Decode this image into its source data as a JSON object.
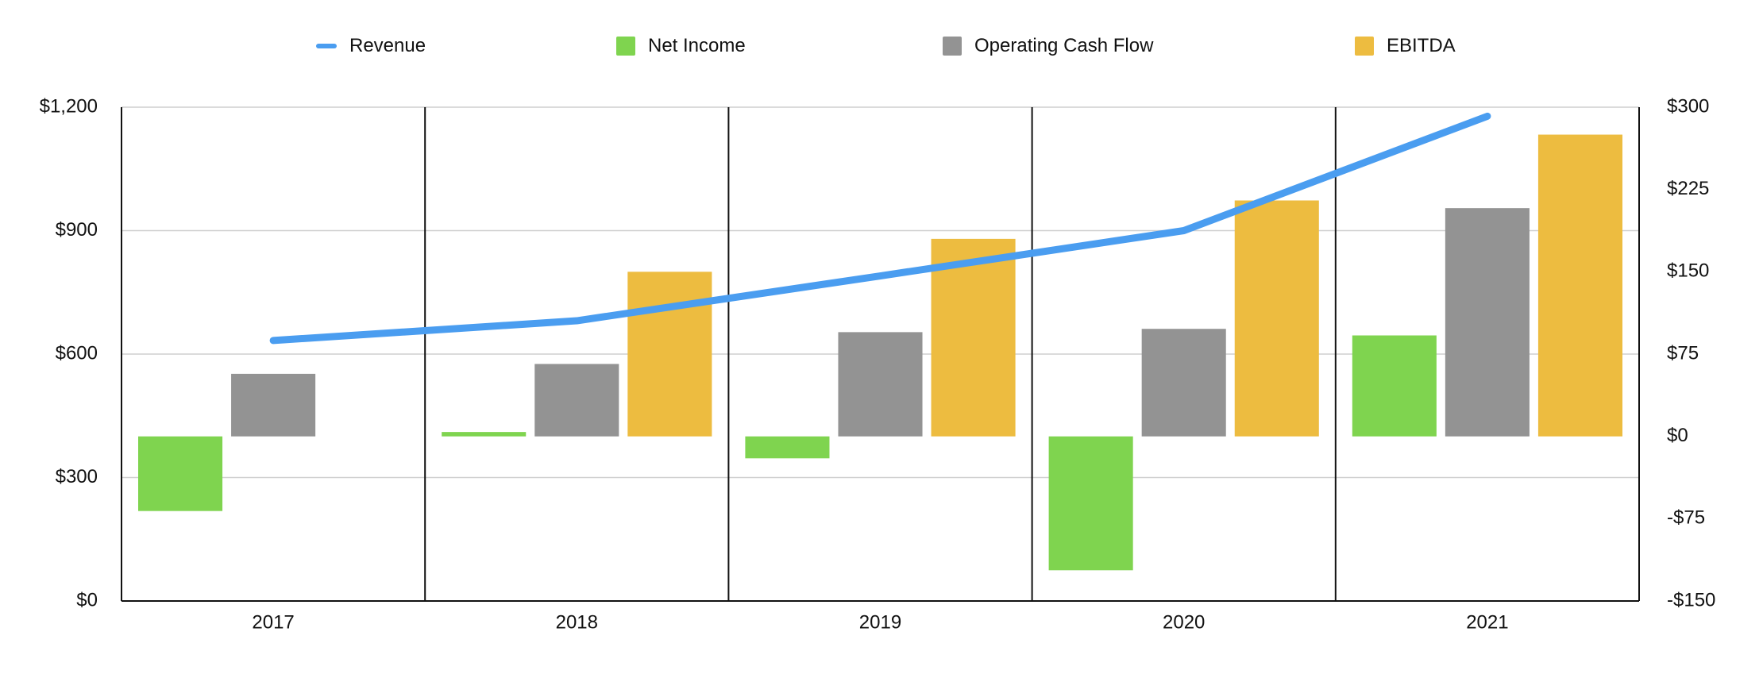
{
  "chart_data": {
    "type": "bar",
    "categories": [
      "2017",
      "2018",
      "2019",
      "2020",
      "2021"
    ],
    "legend_position": "top",
    "grid": true,
    "series": [
      {
        "name": "Revenue",
        "kind": "line",
        "axis": "left",
        "color": "#4a9df0",
        "values": [
          633,
          681,
          790,
          900,
          1178
        ]
      },
      {
        "name": "Net Income",
        "kind": "bar",
        "axis": "right",
        "color": "#7fd44f",
        "values": [
          -68,
          4,
          -20,
          -122,
          92
        ]
      },
      {
        "name": "Operating Cash Flow",
        "kind": "bar",
        "axis": "right",
        "color": "#939393",
        "values": [
          57,
          66,
          95,
          98,
          208
        ]
      },
      {
        "name": "EBITDA",
        "kind": "bar",
        "axis": "right",
        "color": "#edbc40",
        "values": [
          null,
          150,
          180,
          215,
          275
        ]
      }
    ],
    "left_axis": {
      "min": 0,
      "max": 1200,
      "ticks": [
        0,
        300,
        600,
        900,
        1200
      ],
      "tick_labels": [
        "$0",
        "$300",
        "$600",
        "$900",
        "$1,200"
      ]
    },
    "right_axis": {
      "min": -150,
      "max": 300,
      "ticks": [
        -150,
        -75,
        0,
        75,
        150,
        225,
        300
      ],
      "tick_labels": [
        "-$150",
        "-$75",
        "$0",
        "$75",
        "$150",
        "$225",
        "$300"
      ]
    }
  }
}
